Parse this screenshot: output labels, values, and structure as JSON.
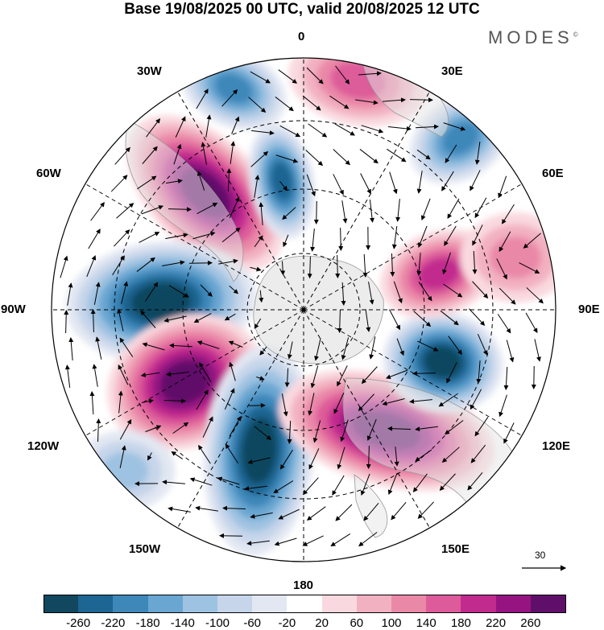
{
  "title": "Base 19/08/2025 00 UTC, valid 20/08/2025 12 UTC",
  "logo": "MODES",
  "logo_mark": "©",
  "map": {
    "projection": "polar stereographic (south pole)",
    "longitude_labels": [
      "0",
      "30E",
      "60E",
      "90E",
      "120E",
      "150E",
      "180",
      "150W",
      "120W",
      "90W",
      "60W",
      "30W"
    ],
    "vector_scale_label": "30",
    "anomalies": [
      {
        "name": "trough-south-atlantic",
        "sign": "negative",
        "peak": -180
      },
      {
        "name": "ridge-0-south",
        "sign": "positive",
        "peak": 140
      },
      {
        "name": "trough-30e",
        "sign": "negative",
        "peak": -180
      },
      {
        "name": "ridge-atlantic-60w",
        "sign": "positive",
        "peak": 260
      },
      {
        "name": "trough-30w-inner",
        "sign": "negative",
        "peak": -220
      },
      {
        "name": "trough-90w",
        "sign": "negative",
        "peak": -260
      },
      {
        "name": "ridge-120w",
        "sign": "positive",
        "peak": 260
      },
      {
        "name": "trough-160w",
        "sign": "negative",
        "peak": -260
      },
      {
        "name": "ridge-south-australia",
        "sign": "positive",
        "peak": 260
      },
      {
        "name": "trough-100e",
        "sign": "negative",
        "peak": -260
      },
      {
        "name": "ridge-70e",
        "sign": "positive",
        "peak": 180
      },
      {
        "name": "ridge-90e-east",
        "sign": "positive",
        "peak": 100
      },
      {
        "name": "trough-120w-outer",
        "sign": "negative",
        "peak": -100
      }
    ]
  },
  "colorbar": {
    "colors": [
      "#11475f",
      "#1d6592",
      "#3d87b9",
      "#69a6d1",
      "#9ec2e1",
      "#c6d5ea",
      "#e2e7f2",
      "#ffffff",
      "#f9d9df",
      "#f2b1c1",
      "#ea88a8",
      "#dd5b9a",
      "#c22b8e",
      "#951482",
      "#5f0f69"
    ],
    "tick_labels": [
      "-260",
      "-220",
      "-180",
      "-140",
      "-100",
      "-60",
      "-20",
      "20",
      "60",
      "100",
      "140",
      "180",
      "220",
      "260"
    ]
  }
}
